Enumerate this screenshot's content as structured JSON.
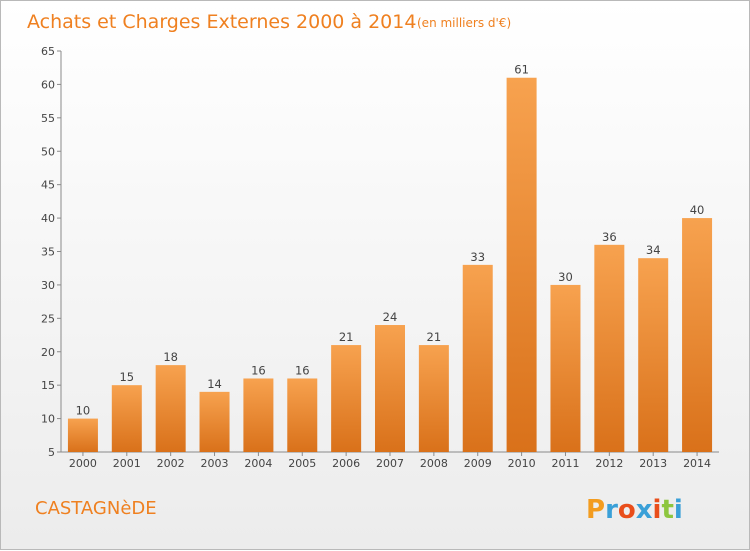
{
  "chart_data": {
    "type": "bar",
    "title": "Achats et Charges Externes 2000 à 2014",
    "unit_note": "(en milliers d'€)",
    "categories": [
      "2000",
      "2001",
      "2002",
      "2003",
      "2004",
      "2005",
      "2006",
      "2007",
      "2008",
      "2009",
      "2010",
      "2011",
      "2012",
      "2013",
      "2014"
    ],
    "values": [
      10,
      15,
      18,
      14,
      16,
      16,
      21,
      24,
      21,
      33,
      61,
      30,
      36,
      34,
      40
    ],
    "ylim": [
      5,
      65
    ],
    "yticks": [
      "5",
      "10",
      "15",
      "20",
      "25",
      "30",
      "35",
      "40",
      "45",
      "50",
      "55",
      "60",
      "65"
    ],
    "grid": false,
    "bar_color_top": "#f7a24f",
    "bar_color_bottom": "#d9711a"
  },
  "footer": {
    "city": "CASTAGNèDE",
    "brand_letters": [
      "P",
      "r",
      "o",
      "x",
      "i",
      "t",
      "i"
    ],
    "brand_colors": [
      "#f39c1f",
      "#3aa0d8",
      "#e94e1b",
      "#3aa0d8",
      "#e94e1b",
      "#8dc63f",
      "#3aa0d8"
    ]
  }
}
